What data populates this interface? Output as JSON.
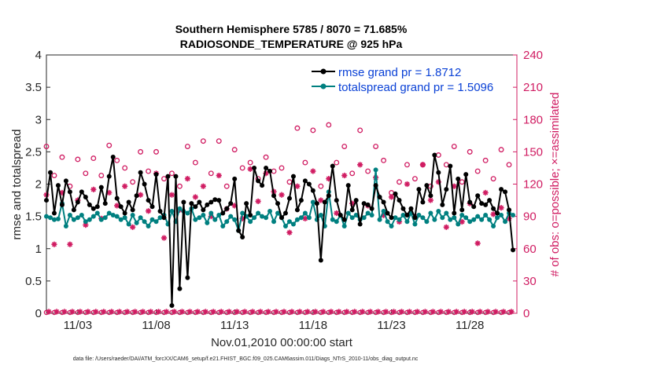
{
  "colors": {
    "rmse": "#000000",
    "spread": "#008080",
    "obs": "#d01c62",
    "legend_text": "#0a41d6",
    "axis": "#262626"
  },
  "chart_data": {
    "type": "line",
    "title_line1": "Southern Hemisphere 5785 / 8070 = 71.685%",
    "title_line2": "RADIOSONDE_TEMPERATURE @ 925 hPa",
    "xlabel": "Nov.01,2010 00:00:00 start",
    "ylabel_left": "rmse and totalspread",
    "ylabel_right": "# of obs: o=possible; ×=assimilated",
    "xlim": [
      1.0,
      31.0
    ],
    "ylim_left": [
      0,
      4
    ],
    "ylim_right": [
      0,
      240
    ],
    "xticks": [
      {
        "value": 3,
        "label": "11/03"
      },
      {
        "value": 8,
        "label": "11/08"
      },
      {
        "value": 13,
        "label": "11/13"
      },
      {
        "value": 18,
        "label": "11/18"
      },
      {
        "value": 23,
        "label": "11/23"
      },
      {
        "value": 28,
        "label": "11/28"
      }
    ],
    "yticks_left": [
      "0",
      "0.5",
      "1",
      "1.5",
      "2",
      "2.5",
      "3",
      "3.5",
      "4"
    ],
    "yticks_right": [
      "0",
      "30",
      "60",
      "90",
      "120",
      "150",
      "180",
      "210",
      "240"
    ],
    "legend": [
      {
        "name": "rmse grand pr = 1.8712",
        "series": "rmse"
      },
      {
        "name": "totalspread grand pr = 1.5096",
        "series": "spread"
      }
    ],
    "footer": "data file: /Users/raeder/DAI/ATM_forcXX/CAM6_setup/f.e21.FHIST_BGC.f09_025.CAM6assim.011/Diags_NTrS_2010-11/obs_diag_output.nc",
    "series": [
      {
        "name": "rmse",
        "x": [
          1.0,
          1.25,
          1.5,
          1.75,
          2.0,
          2.25,
          2.5,
          2.75,
          3.0,
          3.25,
          3.5,
          3.75,
          4.0,
          4.25,
          4.5,
          4.75,
          5.0,
          5.25,
          5.5,
          5.75,
          6.0,
          6.25,
          6.5,
          6.75,
          7.0,
          7.25,
          7.5,
          7.75,
          8.0,
          8.25,
          8.5,
          8.75,
          9.0,
          9.25,
          9.5,
          9.75,
          10.0,
          10.25,
          10.5,
          10.75,
          11.0,
          11.25,
          11.5,
          11.75,
          12.0,
          12.25,
          12.5,
          12.75,
          13.0,
          13.25,
          13.5,
          13.75,
          14.0,
          14.25,
          14.5,
          14.75,
          15.0,
          15.25,
          15.5,
          15.75,
          16.0,
          16.25,
          16.5,
          16.75,
          17.0,
          17.25,
          17.5,
          17.75,
          18.0,
          18.25,
          18.5,
          18.75,
          19.0,
          19.25,
          19.5,
          19.75,
          20.0,
          20.25,
          20.5,
          20.75,
          21.0,
          21.25,
          21.5,
          21.75,
          22.0,
          22.25,
          22.5,
          22.75,
          23.0,
          23.25,
          23.5,
          23.75,
          24.0,
          24.25,
          24.5,
          24.75,
          25.0,
          25.25,
          25.5,
          25.75,
          26.0,
          26.25,
          26.5,
          26.75,
          27.0,
          27.25,
          27.5,
          27.75,
          28.0,
          28.25,
          28.5,
          28.75,
          29.0,
          29.25,
          29.5,
          29.75,
          30.0,
          30.25,
          30.5,
          30.75
        ],
        "values": [
          1.75,
          2.18,
          1.55,
          1.98,
          1.68,
          2.05,
          1.88,
          1.6,
          1.72,
          1.88,
          1.8,
          1.68,
          1.62,
          1.65,
          1.95,
          1.7,
          2.12,
          2.42,
          1.78,
          1.65,
          1.55,
          1.72,
          1.6,
          1.82,
          2.18,
          2.0,
          1.75,
          1.65,
          2.15,
          1.58,
          1.48,
          2.12,
          0.12,
          2.12,
          0.38,
          1.72,
          0.55,
          1.7,
          1.65,
          1.72,
          1.6,
          1.68,
          1.72,
          1.76,
          1.75,
          1.55,
          1.62,
          1.7,
          2.08,
          1.28,
          1.18,
          1.7,
          1.52,
          2.25,
          2.05,
          1.98,
          2.25,
          2.2,
          1.82,
          1.7,
          1.48,
          1.55,
          1.78,
          2.12,
          1.6,
          1.75,
          2.05,
          2.0,
          1.9,
          1.7,
          0.82,
          1.72,
          1.82,
          2.28,
          1.75,
          1.52,
          1.45,
          1.98,
          1.6,
          1.75,
          1.38,
          1.7,
          1.68,
          1.62,
          1.98,
          1.8,
          1.72,
          1.55,
          1.48,
          1.85,
          1.75,
          1.62,
          1.52,
          1.62,
          1.48,
          1.92,
          1.72,
          1.98,
          1.82,
          2.45,
          2.18,
          1.68,
          1.92,
          2.28,
          1.55,
          2.08,
          1.6,
          2.15,
          1.72,
          1.65,
          1.82,
          1.7,
          1.68,
          1.75,
          1.62,
          1.55,
          1.92,
          1.88,
          1.6,
          0.98
        ]
      },
      {
        "name": "totalspread",
        "x": [
          1.0,
          1.25,
          1.5,
          1.75,
          2.0,
          2.25,
          2.5,
          2.75,
          3.0,
          3.25,
          3.5,
          3.75,
          4.0,
          4.25,
          4.5,
          4.75,
          5.0,
          5.25,
          5.5,
          5.75,
          6.0,
          6.25,
          6.5,
          6.75,
          7.0,
          7.25,
          7.5,
          7.75,
          8.0,
          8.25,
          8.5,
          8.75,
          9.0,
          9.25,
          9.5,
          9.75,
          10.0,
          10.25,
          10.5,
          10.75,
          11.0,
          11.25,
          11.5,
          11.75,
          12.0,
          12.25,
          12.5,
          12.75,
          13.0,
          13.25,
          13.5,
          13.75,
          14.0,
          14.25,
          14.5,
          14.75,
          15.0,
          15.25,
          15.5,
          15.75,
          16.0,
          16.25,
          16.5,
          16.75,
          17.0,
          17.25,
          17.5,
          17.75,
          18.0,
          18.25,
          18.5,
          18.75,
          19.0,
          19.25,
          19.5,
          19.75,
          20.0,
          20.25,
          20.5,
          20.75,
          21.0,
          21.25,
          21.5,
          21.75,
          22.0,
          22.25,
          22.5,
          22.75,
          23.0,
          23.25,
          23.5,
          23.75,
          24.0,
          24.25,
          24.5,
          24.75,
          25.0,
          25.25,
          25.5,
          25.75,
          26.0,
          26.25,
          26.5,
          26.75,
          27.0,
          27.25,
          27.5,
          27.75,
          28.0,
          28.25,
          28.5,
          28.75,
          29.0,
          29.25,
          29.5,
          29.75,
          30.0,
          30.25,
          30.5,
          30.75
        ],
        "values": [
          1.5,
          1.48,
          1.45,
          1.46,
          1.7,
          1.35,
          1.52,
          1.45,
          1.48,
          1.52,
          1.42,
          1.45,
          1.5,
          1.55,
          1.45,
          1.48,
          1.55,
          1.52,
          1.5,
          1.45,
          1.48,
          1.38,
          1.52,
          1.4,
          1.48,
          1.42,
          1.35,
          1.45,
          1.42,
          1.48,
          1.52,
          1.38,
          1.58,
          1.42,
          1.62,
          1.58,
          1.55,
          1.62,
          1.45,
          1.48,
          1.52,
          1.4,
          1.55,
          1.45,
          1.52,
          1.35,
          1.42,
          1.5,
          1.45,
          1.28,
          1.55,
          1.5,
          1.42,
          1.48,
          1.55,
          1.5,
          1.48,
          1.58,
          1.42,
          1.55,
          1.48,
          1.35,
          1.42,
          1.38,
          1.45,
          1.48,
          1.55,
          1.48,
          1.72,
          1.45,
          1.52,
          1.35,
          1.88,
          1.45,
          1.42,
          1.52,
          1.35,
          1.55,
          1.48,
          1.52,
          1.45,
          1.48,
          1.55,
          1.52,
          2.22,
          1.45,
          1.58,
          1.42,
          1.35,
          1.48,
          1.45,
          1.52,
          1.42,
          1.55,
          1.38,
          1.52,
          1.48,
          1.42,
          1.55,
          1.45,
          1.58,
          1.48,
          1.55,
          1.45,
          1.48,
          1.38,
          1.52,
          1.48,
          1.42,
          1.45,
          1.5,
          1.45,
          1.52,
          1.45,
          1.35,
          1.48,
          1.52,
          1.42,
          1.55,
          1.52
        ]
      },
      {
        "name": "obs_possible",
        "x": [
          1.0,
          1.5,
          2.0,
          2.5,
          3.0,
          3.5,
          4.0,
          4.5,
          5.0,
          5.5,
          6.0,
          6.5,
          7.0,
          7.5,
          8.0,
          8.5,
          9.0,
          9.5,
          10.0,
          10.5,
          11.0,
          11.5,
          12.0,
          12.5,
          13.0,
          13.5,
          14.0,
          14.5,
          15.0,
          15.5,
          16.0,
          16.5,
          17.0,
          17.5,
          18.0,
          18.5,
          19.0,
          19.5,
          20.0,
          20.5,
          21.0,
          21.5,
          22.0,
          22.5,
          23.0,
          23.5,
          24.0,
          24.5,
          25.0,
          25.5,
          26.0,
          26.5,
          27.0,
          27.5,
          28.0,
          28.5,
          29.0,
          29.5,
          30.0,
          30.5
        ],
        "values": [
          155,
          128,
          145,
          118,
          143,
          130,
          144,
          128,
          156,
          142,
          135,
          122,
          150,
          132,
          150,
          125,
          130,
          118,
          155,
          140,
          160,
          130,
          160,
          118,
          152,
          135,
          140,
          125,
          145,
          132,
          135,
          122,
          172,
          140,
          170,
          118,
          175,
          140,
          155,
          130,
          170,
          132,
          155,
          142,
          112,
          122,
          138,
          125,
          138,
          118,
          147,
          138,
          155,
          122,
          150,
          132,
          142,
          125,
          152,
          138
        ]
      },
      {
        "name": "obs_assimilated",
        "x": [
          1.0,
          1.5,
          2.0,
          2.5,
          3.0,
          3.5,
          4.0,
          4.5,
          5.0,
          5.5,
          6.0,
          6.5,
          7.0,
          7.5,
          8.0,
          8.5,
          9.0,
          9.5,
          10.0,
          10.5,
          11.0,
          11.5,
          12.0,
          12.5,
          13.0,
          13.5,
          14.0,
          14.5,
          15.0,
          15.5,
          16.0,
          16.5,
          17.0,
          17.5,
          18.0,
          18.5,
          19.0,
          19.5,
          20.0,
          20.5,
          21.0,
          21.5,
          22.0,
          22.5,
          23.0,
          23.5,
          24.0,
          24.5,
          25.0,
          25.5,
          26.0,
          26.5,
          27.0,
          27.5,
          28.0,
          28.5,
          29.0,
          29.5,
          30.0,
          30.5
        ],
        "values": [
          110,
          64,
          112,
          64,
          105,
          82,
          115,
          88,
          112,
          100,
          118,
          80,
          110,
          95,
          130,
          70,
          110,
          96,
          125,
          108,
          118,
          90,
          128,
          97,
          100,
          88,
          134,
          104,
          130,
          113,
          110,
          75,
          118,
          88,
          132,
          105,
          125,
          93,
          128,
          102,
          138,
          100,
          126,
          91,
          108,
          85,
          120,
          90,
          138,
          105,
          122,
          80,
          118,
          85,
          102,
          65,
          112,
          92,
          98,
          88
        ]
      }
    ]
  }
}
